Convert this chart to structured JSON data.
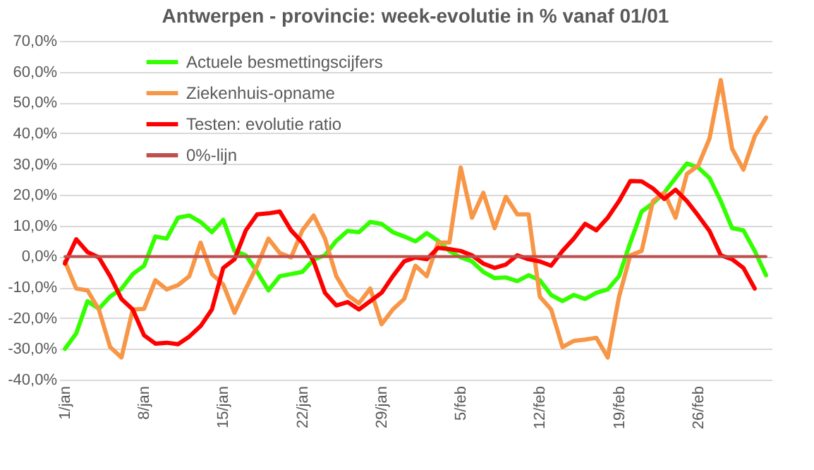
{
  "chart_data": {
    "type": "line",
    "title": "Antwerpen - provincie: week-evolutie in %  vanaf 01/01",
    "categories": [
      "1/jan",
      null,
      null,
      null,
      null,
      null,
      null,
      "8/jan",
      null,
      null,
      null,
      null,
      null,
      null,
      "15/jan",
      null,
      null,
      null,
      null,
      null,
      null,
      "22/jan",
      null,
      null,
      null,
      null,
      null,
      null,
      "29/jan",
      null,
      null,
      null,
      null,
      null,
      null,
      "5/feb",
      null,
      null,
      null,
      null,
      null,
      null,
      "12/feb",
      null,
      null,
      null,
      null,
      null,
      null,
      "19/feb",
      null,
      null,
      null,
      null,
      null,
      null,
      "26/feb",
      null,
      null,
      null,
      null,
      null,
      null
    ],
    "series": [
      {
        "name": "Actuele besmettingscijfers",
        "color": "#33ff00",
        "values": [
          -30,
          -25,
          -14.5,
          -17,
          -13,
          -10.5,
          -5.7,
          -3,
          6.5,
          5.8,
          12.6,
          13.3,
          11.2,
          7.9,
          11.9,
          1.8,
          0.4,
          -5,
          -11,
          -6.4,
          -5.7,
          -5,
          -1,
          0.4,
          5.1,
          8.3,
          7.9,
          11.2,
          10.6,
          7.9,
          6.5,
          4.9,
          7.6,
          5.1,
          1.8,
          -0.3,
          -1.6,
          -5,
          -7,
          -6.8,
          -8,
          -6.1,
          -7.7,
          -12.5,
          -14.5,
          -12.5,
          -13.8,
          -11.8,
          -10.7,
          -6.4,
          4.5,
          14.6,
          17.3,
          20.7,
          25.5,
          30.2,
          28.9,
          25.5,
          18,
          9.2,
          8.5,
          1.8,
          -6.1
        ]
      },
      {
        "name": "Ziekenhuis-opname",
        "color": "#f79646",
        "values": [
          -1.6,
          -10.4,
          -11,
          -17.2,
          -29.4,
          -32.8,
          -17.2,
          -17,
          -7.7,
          -10.7,
          -9.3,
          -6.4,
          4.5,
          -5.7,
          -9.1,
          -18.3,
          -10.4,
          -3,
          5.8,
          1.1,
          -0.3,
          8.5,
          13.3,
          5.8,
          -6.4,
          -12.5,
          -15.2,
          -10.4,
          -22,
          -17.2,
          -13.8,
          -3,
          -6.4,
          4.5,
          4.5,
          28.9,
          12.6,
          20.7,
          9.2,
          19.4,
          13.7,
          13.7,
          -13.1,
          -17.2,
          -29.4,
          -27.4,
          -27,
          -26.4,
          -32.8,
          -13.1,
          0.4,
          1.8,
          18,
          20.7,
          12.6,
          26.8,
          29.5,
          38.3,
          57.3,
          35,
          28.2,
          39,
          45.1
        ]
      },
      {
        "name": "Testen: evolutie ratio",
        "color": "#ff0000",
        "values": [
          -2.3,
          5.6,
          1.4,
          -0.3,
          -6.4,
          -13.8,
          -17.2,
          -25.6,
          -28.3,
          -28,
          -28.5,
          -26,
          -22.6,
          -17.2,
          -3.7,
          -0.9,
          8.5,
          13.7,
          14,
          14.6,
          8.5,
          4.5,
          -1.6,
          -11.8,
          -15.9,
          -14.8,
          -17.2,
          -14.5,
          -11.8,
          -6.4,
          -1.6,
          -0.3,
          -0.9,
          2.8,
          2.4,
          1.8,
          0.4,
          -2.3,
          -3.7,
          -2.6,
          0.4,
          -0.9,
          -1.6,
          -3,
          1.8,
          5.8,
          10.6,
          8.5,
          12.6,
          18,
          24.5,
          24.4,
          22.1,
          18.7,
          21.7,
          18,
          13.3,
          8.3,
          0.4,
          -0.9,
          -3.7,
          -10.4,
          null
        ]
      },
      {
        "name": "0%-lijn",
        "color": "#c0504d",
        "values": [
          0,
          0,
          0,
          0,
          0,
          0,
          0,
          0,
          0,
          0,
          0,
          0,
          0,
          0,
          0,
          0,
          0,
          0,
          0,
          0,
          0,
          0,
          0,
          0,
          0,
          0,
          0,
          0,
          0,
          0,
          0,
          0,
          0,
          0,
          0,
          0,
          0,
          0,
          0,
          0,
          0,
          0,
          0,
          0,
          0,
          0,
          0,
          0,
          0,
          0,
          0,
          0,
          0,
          0,
          0,
          0,
          0,
          0,
          0,
          0,
          0,
          0,
          0
        ]
      }
    ],
    "ylim": [
      -40,
      70
    ],
    "yticks": [
      {
        "value": -40,
        "label": "-40,0%"
      },
      {
        "value": -30,
        "label": "-30,0%"
      },
      {
        "value": -20,
        "label": "-20,0%"
      },
      {
        "value": -10,
        "label": "-10,0%"
      },
      {
        "value": 0,
        "label": "0,0%"
      },
      {
        "value": 10,
        "label": "10,0%"
      },
      {
        "value": 20,
        "label": "20,0%"
      },
      {
        "value": 30,
        "label": "30,0%"
      },
      {
        "value": 40,
        "label": "40,0%"
      },
      {
        "value": 50,
        "label": "50,0%"
      },
      {
        "value": 60,
        "label": "60,0%"
      },
      {
        "value": 70,
        "label": "70,0%"
      }
    ],
    "grid": "y",
    "legend": "top left"
  }
}
